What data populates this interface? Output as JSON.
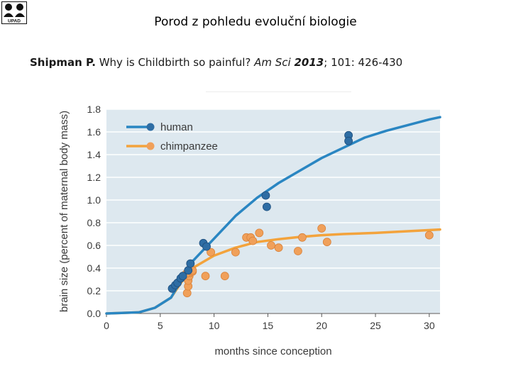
{
  "slide": {
    "title": "Porod z pohledu evoluční biologie",
    "logo_text": "UPAD",
    "citation": {
      "author": "Shipman P.",
      "text": " Why is Childbirth so painful? ",
      "journal": "Am Sci",
      "year": "2013",
      "rest": "; 101: 426-430"
    }
  },
  "colors": {
    "human": "#2e6da4",
    "human_line": "#2a86c2",
    "chimp": "#f0a05a",
    "chimp_line": "#f3a33c",
    "plot_bg": "#dde8ef",
    "grid": "#ffffff"
  },
  "chart_data": {
    "type": "scatter",
    "xlabel": "months since conception",
    "ylabel": "brain size (percent of maternal body mass)",
    "xlim": [
      0,
      31
    ],
    "ylim": [
      0,
      1.8
    ],
    "xticks": [
      "0",
      "5",
      "10",
      "15",
      "20",
      "25",
      "30"
    ],
    "yticks": [
      "0.0",
      "0.2",
      "0.4",
      "0.6",
      "0.8",
      "1.0",
      "1.2",
      "1.4",
      "1.6",
      "1.8"
    ],
    "legend_position": "top-left",
    "series": [
      {
        "name": "human",
        "color": "#2e6da4",
        "curve": [
          [
            0,
            0
          ],
          [
            3,
            0.01
          ],
          [
            4.5,
            0.05
          ],
          [
            6,
            0.14
          ],
          [
            7,
            0.3
          ],
          [
            8,
            0.46
          ],
          [
            10,
            0.66
          ],
          [
            12,
            0.86
          ],
          [
            14,
            1.02
          ],
          [
            16,
            1.15
          ],
          [
            18,
            1.26
          ],
          [
            20,
            1.37
          ],
          [
            22,
            1.46
          ],
          [
            24,
            1.55
          ],
          [
            26,
            1.61
          ],
          [
            28,
            1.66
          ],
          [
            30,
            1.71
          ],
          [
            31,
            1.73
          ]
        ],
        "points": [
          [
            6.1,
            0.22
          ],
          [
            6.4,
            0.25
          ],
          [
            6.6,
            0.27
          ],
          [
            6.9,
            0.31
          ],
          [
            7.1,
            0.33
          ],
          [
            7.6,
            0.38
          ],
          [
            7.8,
            0.44
          ],
          [
            9.0,
            0.62
          ],
          [
            9.3,
            0.59
          ],
          [
            14.8,
            1.04
          ],
          [
            14.9,
            0.94
          ],
          [
            22.5,
            1.57
          ],
          [
            22.5,
            1.52
          ]
        ]
      },
      {
        "name": "chimpanzee",
        "color": "#f0a05a",
        "curve": [
          [
            0,
            0
          ],
          [
            3,
            0.01
          ],
          [
            4.5,
            0.05
          ],
          [
            6,
            0.14
          ],
          [
            7,
            0.28
          ],
          [
            8,
            0.4
          ],
          [
            10,
            0.51
          ],
          [
            12,
            0.58
          ],
          [
            14,
            0.63
          ],
          [
            16,
            0.655
          ],
          [
            18,
            0.675
          ],
          [
            20,
            0.69
          ],
          [
            22,
            0.7
          ],
          [
            25,
            0.71
          ],
          [
            28,
            0.725
          ],
          [
            31,
            0.74
          ]
        ],
        "points": [
          [
            7.5,
            0.18
          ],
          [
            7.6,
            0.24
          ],
          [
            7.6,
            0.29
          ],
          [
            7.7,
            0.33
          ],
          [
            7.8,
            0.36
          ],
          [
            8.0,
            0.37
          ],
          [
            7.4,
            0.35
          ],
          [
            8.0,
            0.38
          ],
          [
            9.7,
            0.54
          ],
          [
            9.2,
            0.33
          ],
          [
            11.0,
            0.33
          ],
          [
            12.0,
            0.54
          ],
          [
            13.0,
            0.67
          ],
          [
            13.4,
            0.67
          ],
          [
            13.6,
            0.64
          ],
          [
            14.2,
            0.71
          ],
          [
            15.3,
            0.6
          ],
          [
            16.0,
            0.58
          ],
          [
            17.8,
            0.55
          ],
          [
            18.2,
            0.67
          ],
          [
            20.0,
            0.75
          ],
          [
            20.5,
            0.63
          ],
          [
            30.0,
            0.69
          ]
        ]
      }
    ]
  }
}
